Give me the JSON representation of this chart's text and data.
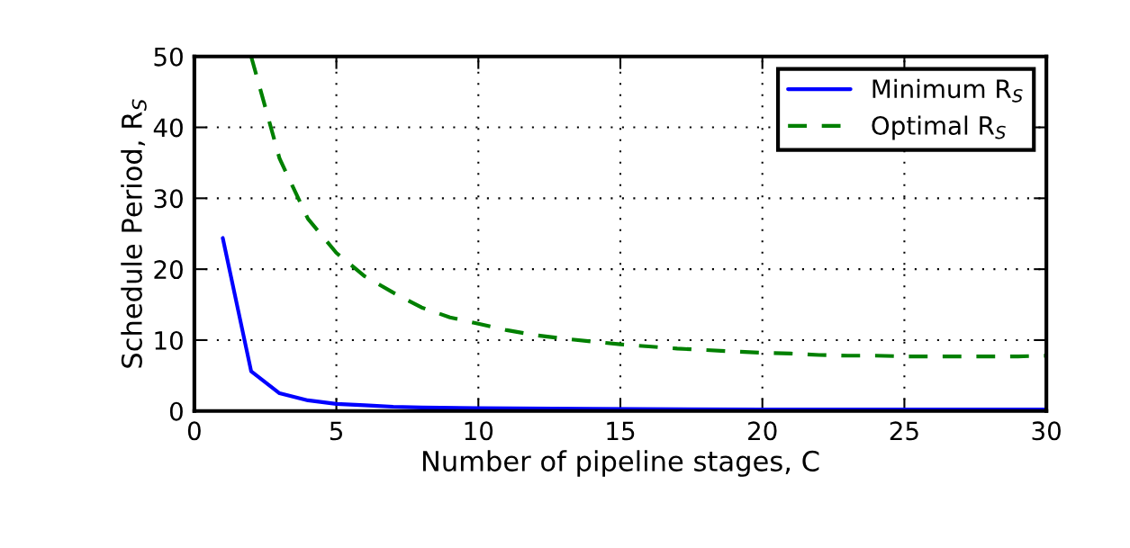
{
  "chart_data": {
    "type": "line",
    "xlabel": "Number of pipeline stages, C",
    "ylabel": "Schedule Period, R$_{S}$",
    "xlim": [
      0,
      30
    ],
    "ylim": [
      0,
      50
    ],
    "xticks": [
      0,
      5,
      10,
      15,
      20,
      25,
      30
    ],
    "yticks": [
      0,
      10,
      20,
      30,
      40,
      50
    ],
    "grid": true,
    "legend": "top right",
    "series": [
      {
        "name": "Minimum R$_{S}$",
        "color": "#0000ff",
        "line_style": "solid",
        "x": [
          1,
          2,
          3,
          4,
          5,
          6,
          7,
          8,
          10,
          14,
          20,
          30
        ],
        "values": [
          24.4,
          5.6,
          2.5,
          1.5,
          1.0,
          0.8,
          0.6,
          0.5,
          0.4,
          0.3,
          0.2,
          0.2
        ]
      },
      {
        "name": "Optimal R$_{S}$",
        "color": "#008000",
        "line_style": "dashed",
        "x": [
          2,
          3,
          4,
          5,
          6,
          7,
          8,
          9,
          10,
          11,
          12,
          13,
          14,
          15,
          16,
          17,
          18,
          19,
          20,
          21,
          22,
          23,
          24,
          25,
          26,
          27,
          28,
          29,
          30
        ],
        "values": [
          50,
          35.6,
          27.1,
          22.3,
          19.0,
          16.7,
          14.6,
          13.2,
          12.3,
          11.4,
          10.7,
          10.2,
          9.8,
          9.4,
          9.1,
          8.8,
          8.6,
          8.4,
          8.2,
          8.1,
          7.9,
          7.8,
          7.8,
          7.7,
          7.7,
          7.7,
          7.7,
          7.7,
          7.8
        ]
      }
    ]
  }
}
